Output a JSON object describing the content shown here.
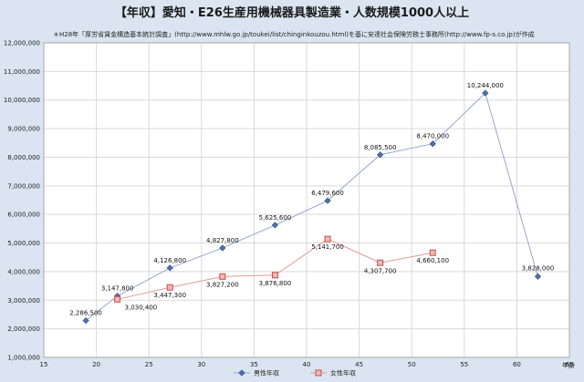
{
  "chart_data": {
    "type": "line",
    "title": "【年収】愛知・E26生産用機械器具製造業・人数規模1000人以上",
    "subtitle": "＊H28年「厚労省賃金構造基本統計調査」(http://www.mhlw.go.jp/toukei/list/chinginkouzou.html)を基に安達社会保険労務士事務所(http://www.fp-s.co.jp)が作成",
    "xlabel": "年齢",
    "ylabel": "",
    "xlim": [
      15,
      65
    ],
    "ylim": [
      1000000,
      12000000
    ],
    "x_ticks": [
      "15",
      "20",
      "25",
      "30",
      "35",
      "40",
      "45",
      "50",
      "55",
      "60",
      "65"
    ],
    "y_ticks": [
      "1,000,000",
      "2,000,000",
      "3,000,000",
      "4,000,000",
      "5,000,000",
      "6,000,000",
      "7,000,000",
      "8,000,000",
      "9,000,000",
      "10,000,000",
      "11,000,000",
      "12,000,000"
    ],
    "grid": true,
    "legend_position": "bottom",
    "series": [
      {
        "name": "男性年収",
        "color": "#4f6fa8",
        "marker": "diamond",
        "x": [
          19,
          22,
          27,
          32,
          37,
          42,
          47,
          52,
          57,
          62
        ],
        "values": [
          2286500,
          3147800,
          4126800,
          4827800,
          5625600,
          6479600,
          8085500,
          8470000,
          10244000,
          3828000
        ],
        "labels": [
          "2,286,500",
          "3,147,800",
          "4,126,800",
          "4,827,800",
          "5,625,600",
          "6,479,600",
          "8,085,500",
          "8,470,000",
          "10,244,000",
          "3,828,000"
        ]
      },
      {
        "name": "女性年収",
        "color": "#c0504d",
        "marker": "square",
        "x": [
          22,
          27,
          32,
          37,
          42,
          47,
          52
        ],
        "values": [
          3030400,
          3447300,
          3827200,
          3876800,
          5141700,
          4307700,
          4660100
        ],
        "labels": [
          "3,030,400",
          "3,447,300",
          "3,827,200",
          "3,876,800",
          "5,141,700",
          "4,307,700",
          "4,660,100"
        ]
      }
    ]
  }
}
